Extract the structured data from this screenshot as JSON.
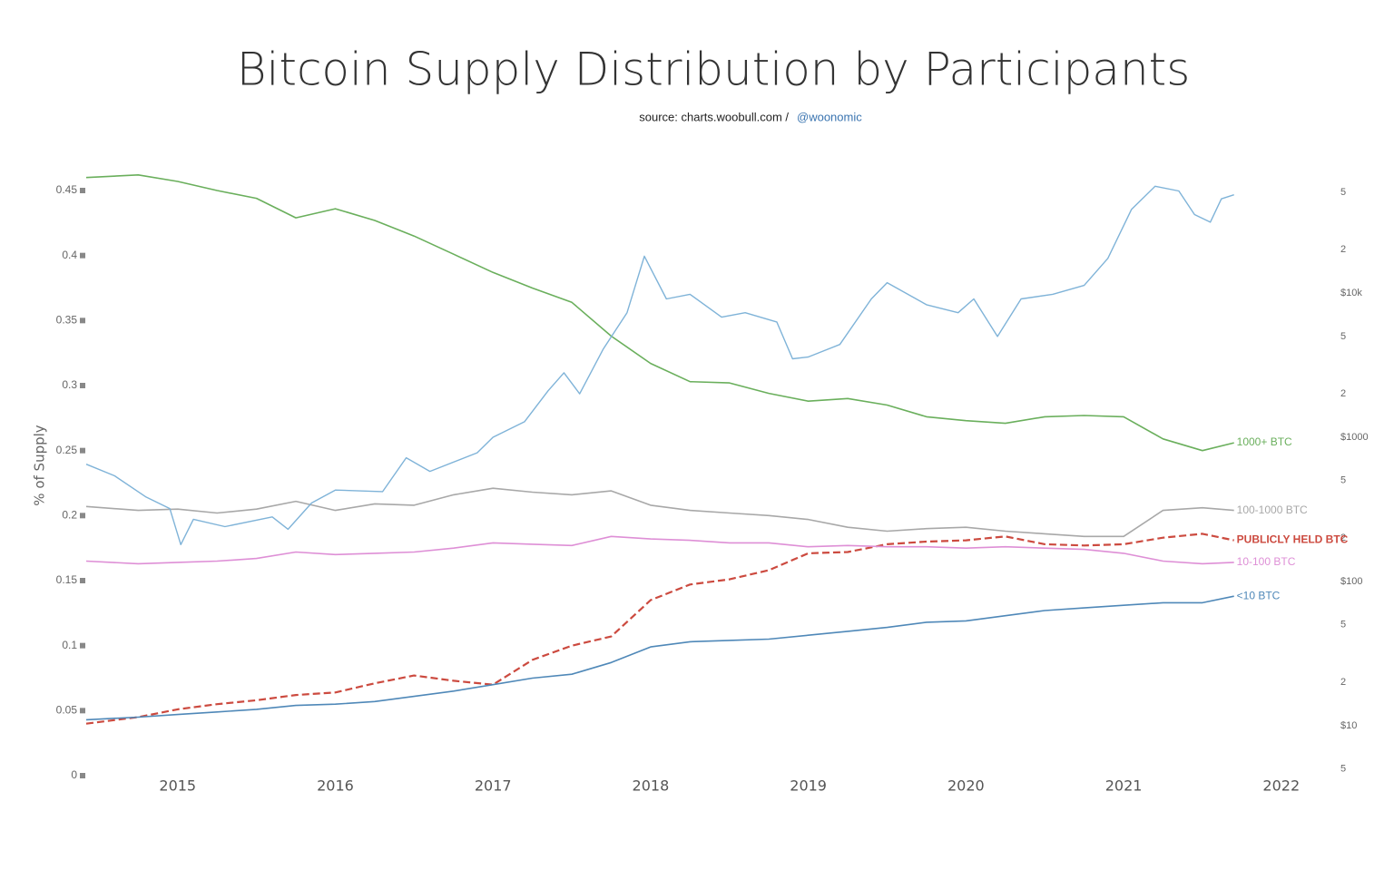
{
  "chart_data": {
    "type": "line",
    "title": "Bitcoin Supply Distribution by Participants",
    "source": "source: charts.woobull.com /",
    "source_handle": "@woonomic",
    "y_label": "% of Supply",
    "grid": false,
    "x": [
      2014.42,
      2014.75,
      2015.0,
      2015.25,
      2015.5,
      2015.75,
      2016.0,
      2016.25,
      2016.5,
      2016.75,
      2017.0,
      2017.25,
      2017.5,
      2017.75,
      2018.0,
      2018.25,
      2018.5,
      2018.75,
      2019.0,
      2019.25,
      2019.5,
      2019.75,
      2020.0,
      2020.25,
      2020.5,
      2020.75,
      2021.0,
      2021.25,
      2021.5,
      2021.7
    ],
    "xlim": [
      2014.42,
      2022.22
    ],
    "xticks": [
      2015,
      2016,
      2017,
      2018,
      2019,
      2020,
      2021,
      2022
    ],
    "ylim": [
      0,
      0.45
    ],
    "yticks": [
      0,
      0.05,
      0.1,
      0.15,
      0.2,
      0.25,
      0.3,
      0.35,
      0.4,
      0.45
    ],
    "y2lim": [
      4.5,
      51400
    ],
    "y2_log": true,
    "y2ticks": [
      5,
      {
        "value": 10,
        "label": "$10"
      },
      {
        "value": 20,
        "label": "2"
      },
      {
        "value": 50,
        "label": "5"
      },
      {
        "value": 100,
        "label": "$100"
      },
      {
        "value": 200,
        "label": "2"
      },
      {
        "value": 500,
        "label": "5"
      },
      {
        "value": 1000,
        "label": "$1000"
      },
      {
        "value": 2000,
        "label": "2"
      },
      {
        "value": 5000,
        "label": "5"
      },
      {
        "value": 10000,
        "label": "$10k"
      },
      {
        "value": 20000,
        "label": "2"
      },
      {
        "value": 50000,
        "label": "5"
      }
    ],
    "series": [
      {
        "name": "1000+ BTC",
        "color": "#6aaf5c",
        "values": [
          0.46,
          0.462,
          0.457,
          0.45,
          0.444,
          0.429,
          0.436,
          0.427,
          0.415,
          0.401,
          0.387,
          0.375,
          0.364,
          0.338,
          0.317,
          0.303,
          0.302,
          0.294,
          0.288,
          0.29,
          0.285,
          0.276,
          0.273,
          0.271,
          0.276,
          0.277,
          0.276,
          0.259,
          0.25,
          0.256
        ]
      },
      {
        "name": "100-1000 BTC",
        "color": "#a8a8a8",
        "values": [
          0.207,
          0.204,
          0.205,
          0.202,
          0.205,
          0.211,
          0.204,
          0.209,
          0.208,
          0.216,
          0.221,
          0.218,
          0.216,
          0.219,
          0.208,
          0.204,
          0.202,
          0.2,
          0.197,
          0.191,
          0.188,
          0.19,
          0.191,
          0.188,
          0.186,
          0.184,
          0.184,
          0.204,
          0.206,
          0.204
        ]
      },
      {
        "name": "PUBLICLY HELD BTC",
        "color": "#cc4a3f",
        "dashed": true,
        "values": [
          0.04,
          0.045,
          0.051,
          0.055,
          0.058,
          0.062,
          0.064,
          0.071,
          0.077,
          0.073,
          0.07,
          0.089,
          0.1,
          0.107,
          0.135,
          0.147,
          0.151,
          0.158,
          0.171,
          0.172,
          0.178,
          0.18,
          0.181,
          0.184,
          0.178,
          0.177,
          0.178,
          0.183,
          0.186,
          0.181
        ]
      },
      {
        "name": "10-100 BTC",
        "color": "#de8fd6",
        "values": [
          0.165,
          0.163,
          0.164,
          0.165,
          0.167,
          0.172,
          0.17,
          0.171,
          0.172,
          0.175,
          0.179,
          0.178,
          0.177,
          0.184,
          0.182,
          0.181,
          0.179,
          0.179,
          0.176,
          0.177,
          0.176,
          0.176,
          0.175,
          0.176,
          0.175,
          0.174,
          0.171,
          0.165,
          0.163,
          0.164
        ]
      },
      {
        "name": "<10 BTC",
        "color": "#4f88b8",
        "values": [
          0.043,
          0.045,
          0.047,
          0.049,
          0.051,
          0.054,
          0.055,
          0.057,
          0.061,
          0.065,
          0.07,
          0.075,
          0.078,
          0.087,
          0.099,
          0.103,
          0.104,
          0.105,
          0.108,
          0.111,
          0.114,
          0.118,
          0.119,
          0.123,
          0.127,
          0.129,
          0.131,
          0.133,
          0.133,
          0.138
        ]
      },
      {
        "axis": "y2",
        "color": "#7fb3d8",
        "x": [
          2014.42,
          2014.6,
          2014.8,
          2014.95,
          2015.02,
          2015.1,
          2015.3,
          2015.6,
          2015.7,
          2015.85,
          2016.0,
          2016.3,
          2016.45,
          2016.6,
          2016.9,
          2017.0,
          2017.2,
          2017.35,
          2017.45,
          2017.55,
          2017.7,
          2017.85,
          2017.96,
          2018.1,
          2018.25,
          2018.45,
          2018.6,
          2018.8,
          2018.9,
          2019.0,
          2019.2,
          2019.4,
          2019.5,
          2019.75,
          2019.95,
          2020.05,
          2020.2,
          2020.35,
          2020.55,
          2020.75,
          2020.9,
          2021.05,
          2021.2,
          2021.35,
          2021.45,
          2021.55,
          2021.62,
          2021.7
        ],
        "values": [
          650,
          540,
          385,
          320,
          180,
          270,
          240,
          280,
          230,
          350,
          430,
          420,
          720,
          580,
          780,
          1000,
          1280,
          2100,
          2800,
          2000,
          4100,
          7300,
          18000,
          9100,
          9800,
          6800,
          7300,
          6300,
          3500,
          3600,
          4400,
          9100,
          11800,
          8300,
          7300,
          9100,
          5000,
          9100,
          9800,
          11300,
          17400,
          38000,
          55000,
          51000,
          35000,
          31000,
          45000,
          48000
        ]
      }
    ]
  }
}
